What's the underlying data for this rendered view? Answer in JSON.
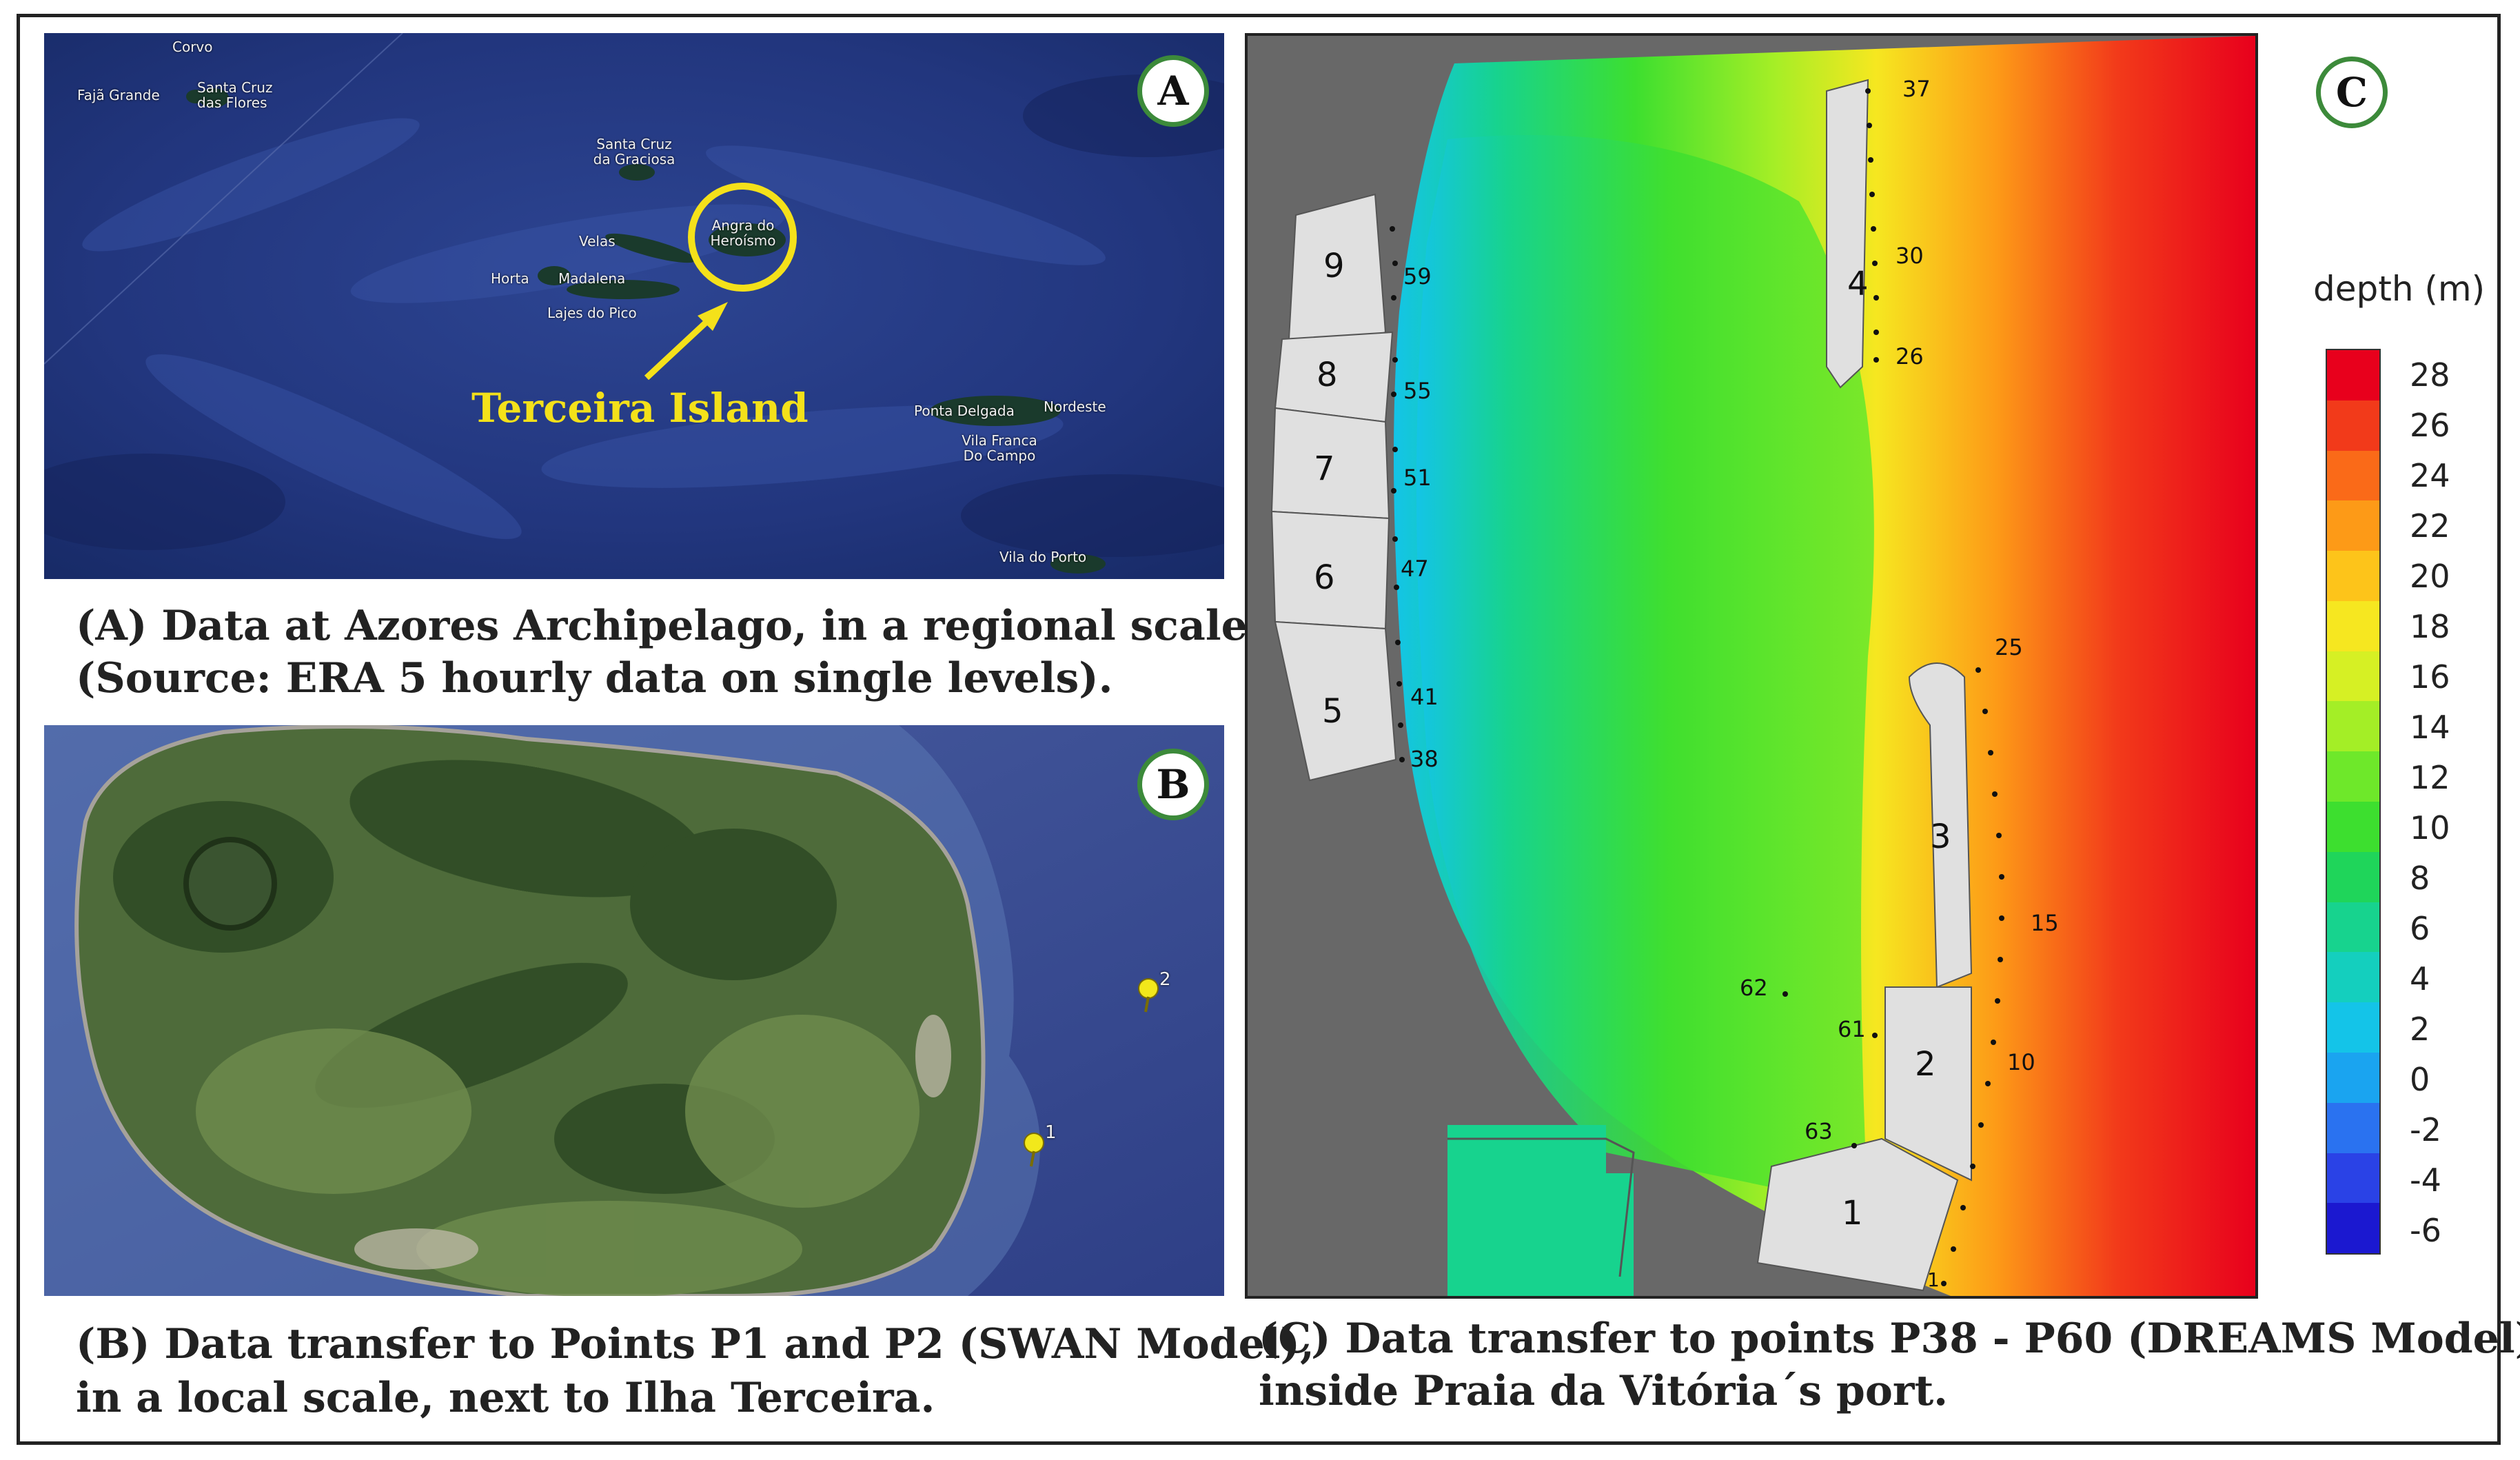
{
  "panels": {
    "a": {
      "badge": "A",
      "island_label": "Terceira Island",
      "place_names": [
        "Corvo",
        "Fajã Grande",
        "Santa Cruz das Flores",
        "Santa Cruz da Graciosa",
        "Velas",
        "Horta",
        "Madalena",
        "Lajes do Pico",
        "Angra do Heroísmo",
        "Ponta Delgada",
        "Nordeste",
        "Vila Franca Do Campo",
        "Vila do Porto"
      ],
      "caption_line1": "(A) Data at Azores Archipelago, in a regional scale",
      "caption_line2": "(Source: ERA 5 hourly data on single levels)."
    },
    "b": {
      "badge": "B",
      "pins": [
        "1",
        "2"
      ],
      "caption_line1": "(B) Data transfer to Points P1 and P2 (SWAN Model),",
      "caption_line2": "in a local scale, next to Ilha Terceira."
    },
    "c": {
      "badge": "C",
      "legend_title": "depth (m)",
      "legend_ticks": [
        "28",
        "26",
        "24",
        "22",
        "20",
        "18",
        "16",
        "14",
        "12",
        "10",
        "8",
        "6",
        "4",
        "2",
        "0",
        "-2",
        "-4",
        "-6"
      ],
      "legend_colors": [
        "#e8001c",
        "#f23a1a",
        "#fa6a18",
        "#fd9a17",
        "#fdc41a",
        "#f6e720",
        "#d6f024",
        "#a4ee26",
        "#6ee82a",
        "#3ddf2f",
        "#1fd55a",
        "#17d38e",
        "#14cfbe",
        "#14c4e8",
        "#1aa4f0",
        "#2a72f0",
        "#2a42e6",
        "#1b18d0"
      ],
      "structures": [
        "1",
        "2",
        "3",
        "4",
        "5",
        "6",
        "7",
        "8",
        "9"
      ],
      "points": [
        "37",
        "30",
        "26",
        "25",
        "15",
        "10",
        "1",
        "59",
        "55",
        "51",
        "47",
        "41",
        "38",
        "62",
        "61",
        "63"
      ],
      "caption_line1": "(C) Data transfer to points P38 - P60 (DREAMS Model),",
      "caption_line2": "inside Praia da Vitória´s port."
    }
  }
}
